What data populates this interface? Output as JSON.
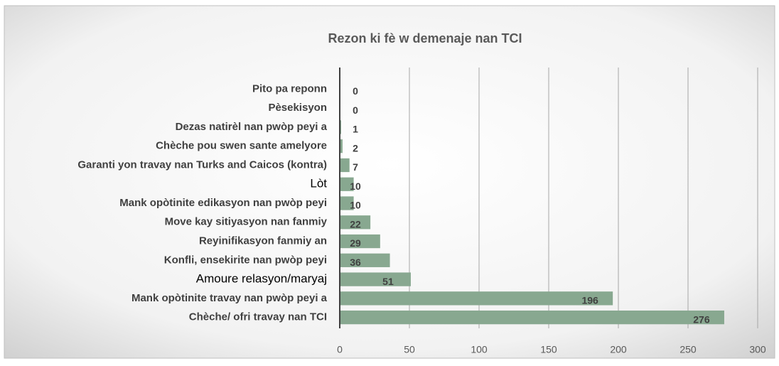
{
  "chart_data": {
    "type": "bar",
    "orientation": "horizontal",
    "title": "Rezon ki fè w demenaje nan TCI",
    "categories": [
      "Pito pa reponn",
      "Pèsekisyon",
      "Dezas natirèl nan pwòp peyi a",
      "Chèche pou swen sante amelyore",
      "Garanti yon travay nan Turks and Caicos (kontra)",
      "Lòt",
      "Mank opòtinite edikasyon nan pwòp peyi",
      "Move kay sitiyasyon nan fanmiy",
      "Reyinifikasyon fanmiy an",
      "Konfli, ensekirite nan pwòp peyi",
      "Amoure relasyon/maryaj",
      "Mank opòtinite travay nan pwòp peyi a",
      "Chèche/ ofri travay nan TCI"
    ],
    "values": [
      0,
      0,
      1,
      2,
      7,
      10,
      10,
      22,
      29,
      36,
      51,
      196,
      276
    ],
    "color": "#88a890",
    "xlim": [
      0,
      300
    ],
    "xticks": [
      0,
      50,
      100,
      150,
      200,
      250,
      300
    ],
    "grid": true
  }
}
